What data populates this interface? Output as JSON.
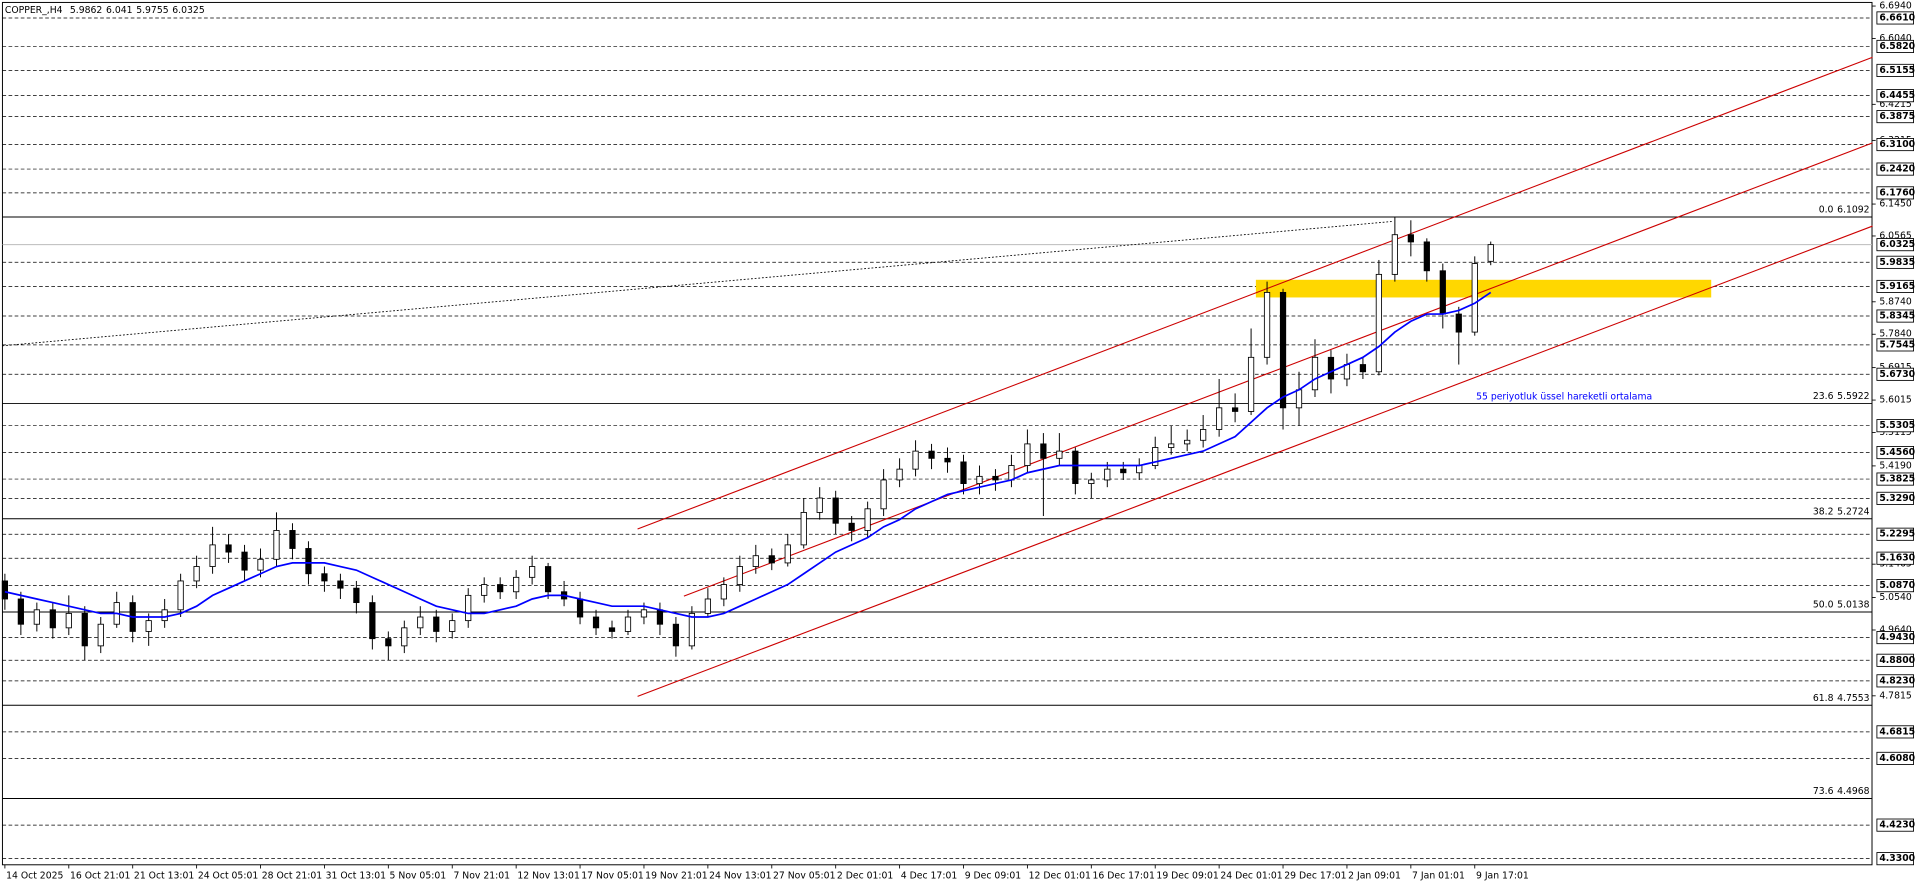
{
  "chart_data": {
    "type": "candlestick",
    "title": "COPPER_,H4",
    "categories": [
      "14 Oct 2025",
      null,
      null,
      null,
      "16 Oct 21:01",
      null,
      null,
      null,
      "21 Oct 13:01",
      null,
      null,
      null,
      "24 Oct 05:01",
      null,
      null,
      null,
      "28 Oct 21:01",
      null,
      null,
      null,
      "31 Oct 13:01",
      null,
      null,
      null,
      "5 Nov 05:01",
      null,
      null,
      null,
      "7 Nov 21:01",
      null,
      null,
      null,
      "12 Nov 13:01",
      null,
      null,
      null,
      "17 Nov 05:01",
      null,
      null,
      null,
      "19 Nov 21:01",
      null,
      null,
      null,
      "24 Nov 13:01",
      null,
      null,
      null,
      "27 Nov 05:01",
      null,
      null,
      null,
      "2 Dec 01:01",
      null,
      null,
      null,
      "4 Dec 17:01",
      null,
      null,
      null,
      "9 Dec 09:01",
      null,
      null,
      null,
      "12 Dec 01:01",
      null,
      null,
      null,
      "16 Dec 17:01",
      null,
      null,
      null,
      "19 Dec 09:01",
      null,
      null,
      null,
      "24 Dec 01:01",
      null,
      null,
      null,
      "29 Dec 17:01",
      null,
      null,
      null,
      "2 Jan 09:01",
      null,
      null,
      null,
      "7 Jan 01:01",
      null,
      null,
      null,
      "9 Jan 17:01",
      null
    ],
    "open": [
      5.1,
      5.05,
      4.98,
      5.02,
      4.97,
      5.01,
      4.92,
      4.98,
      5.04,
      4.96,
      4.99,
      5.02,
      5.1,
      5.14,
      5.2,
      5.18,
      5.13,
      5.16,
      5.24,
      5.19,
      5.12,
      5.1,
      5.08,
      5.04,
      4.94,
      4.92,
      4.97,
      5.0,
      4.96,
      4.99,
      5.06,
      5.09,
      5.07,
      5.11,
      5.14,
      5.07,
      5.05,
      5.0,
      4.97,
      4.96,
      5.0,
      5.02,
      4.98,
      4.92,
      5.01,
      5.05,
      5.09,
      5.14,
      5.17,
      5.15,
      5.2,
      5.29,
      5.33,
      5.26,
      5.24,
      5.3,
      5.38,
      5.41,
      5.46,
      5.44,
      5.43,
      5.37,
      5.39,
      5.38,
      5.42,
      5.48,
      5.44,
      5.46,
      5.37,
      5.38,
      5.41,
      5.4,
      5.42,
      5.47,
      5.48,
      5.49,
      5.52,
      5.58,
      5.57,
      5.72,
      5.9,
      5.58,
      5.63,
      5.72,
      5.66,
      5.7,
      5.68,
      5.95,
      6.06,
      6.04,
      5.96,
      5.84,
      5.79,
      5.9862
    ],
    "high": [
      5.12,
      5.07,
      5.04,
      5.04,
      5.06,
      5.03,
      5.0,
      5.07,
      5.06,
      5.01,
      5.05,
      5.12,
      5.17,
      5.25,
      5.23,
      5.2,
      5.19,
      5.29,
      5.26,
      5.21,
      5.14,
      5.12,
      5.1,
      5.06,
      4.96,
      4.99,
      5.03,
      5.02,
      5.01,
      5.08,
      5.11,
      5.11,
      5.13,
      5.17,
      5.15,
      5.1,
      5.07,
      5.02,
      4.99,
      5.02,
      5.04,
      5.04,
      5.0,
      5.03,
      5.08,
      5.11,
      5.17,
      5.2,
      5.19,
      5.23,
      5.33,
      5.36,
      5.35,
      5.28,
      5.32,
      5.41,
      5.44,
      5.49,
      5.48,
      5.47,
      5.45,
      5.42,
      5.41,
      5.45,
      5.52,
      5.51,
      5.51,
      5.47,
      5.4,
      5.43,
      5.43,
      5.44,
      5.5,
      5.53,
      5.52,
      5.56,
      5.66,
      5.62,
      5.8,
      5.93,
      5.91,
      5.68,
      5.77,
      5.74,
      5.73,
      5.72,
      5.99,
      6.11,
      6.1,
      6.05,
      5.98,
      5.86,
      6.0,
      6.041
    ],
    "low": [
      5.02,
      4.95,
      4.96,
      4.94,
      4.95,
      4.88,
      4.9,
      4.97,
      4.93,
      4.92,
      4.97,
      5.0,
      5.08,
      5.12,
      5.15,
      5.1,
      5.11,
      5.14,
      5.16,
      5.09,
      5.07,
      5.05,
      5.01,
      4.91,
      4.88,
      4.9,
      4.95,
      4.93,
      4.94,
      4.97,
      5.04,
      5.05,
      5.05,
      5.09,
      5.05,
      5.03,
      4.98,
      4.95,
      4.94,
      4.95,
      4.98,
      4.95,
      4.89,
      4.91,
      5.0,
      5.03,
      5.07,
      5.12,
      5.13,
      5.14,
      5.19,
      5.27,
      5.23,
      5.21,
      5.22,
      5.28,
      5.36,
      5.39,
      5.41,
      5.4,
      5.34,
      5.34,
      5.35,
      5.36,
      5.4,
      5.28,
      5.42,
      5.34,
      5.33,
      5.36,
      5.38,
      5.38,
      5.41,
      5.45,
      5.46,
      5.47,
      5.5,
      5.54,
      5.56,
      5.7,
      5.52,
      5.53,
      5.61,
      5.62,
      5.64,
      5.66,
      5.67,
      5.93,
      6.0,
      5.93,
      5.8,
      5.7,
      5.78,
      5.9755
    ],
    "close": [
      5.05,
      4.98,
      5.02,
      4.97,
      5.01,
      4.92,
      4.98,
      5.04,
      4.96,
      4.99,
      5.02,
      5.1,
      5.14,
      5.2,
      5.18,
      5.13,
      5.16,
      5.24,
      5.19,
      5.12,
      5.1,
      5.08,
      5.04,
      4.94,
      4.92,
      4.97,
      5.0,
      4.96,
      4.99,
      5.06,
      5.09,
      5.07,
      5.11,
      5.14,
      5.07,
      5.05,
      5.0,
      4.97,
      4.96,
      5.0,
      5.02,
      4.98,
      4.92,
      5.01,
      5.05,
      5.09,
      5.14,
      5.17,
      5.15,
      5.2,
      5.29,
      5.33,
      5.26,
      5.24,
      5.3,
      5.38,
      5.41,
      5.46,
      5.44,
      5.43,
      5.37,
      5.39,
      5.38,
      5.42,
      5.48,
      5.44,
      5.46,
      5.37,
      5.38,
      5.41,
      5.4,
      5.42,
      5.47,
      5.48,
      5.49,
      5.52,
      5.58,
      5.57,
      5.72,
      5.9,
      5.58,
      5.63,
      5.72,
      5.66,
      5.7,
      5.68,
      5.95,
      6.06,
      6.04,
      5.96,
      5.84,
      5.79,
      5.98,
      6.0325
    ],
    "series": [
      {
        "name": "55 periyotluk üssel hareketli ortalama",
        "color": "#0000ff",
        "values": [
          5.07,
          5.06,
          5.05,
          5.04,
          5.03,
          5.02,
          5.01,
          5.01,
          5.0,
          5.0,
          5.0,
          5.01,
          5.03,
          5.06,
          5.08,
          5.1,
          5.12,
          5.14,
          5.15,
          5.15,
          5.15,
          5.14,
          5.13,
          5.11,
          5.09,
          5.07,
          5.05,
          5.03,
          5.02,
          5.01,
          5.01,
          5.02,
          5.03,
          5.05,
          5.06,
          5.06,
          5.05,
          5.04,
          5.03,
          5.03,
          5.03,
          5.02,
          5.01,
          5.0,
          5.0,
          5.01,
          5.03,
          5.05,
          5.07,
          5.09,
          5.12,
          5.15,
          5.18,
          5.2,
          5.22,
          5.25,
          5.27,
          5.3,
          5.32,
          5.34,
          5.35,
          5.36,
          5.37,
          5.38,
          5.4,
          5.41,
          5.42,
          5.42,
          5.42,
          5.42,
          5.42,
          5.42,
          5.43,
          5.44,
          5.45,
          5.46,
          5.48,
          5.5,
          5.54,
          5.58,
          5.61,
          5.63,
          5.66,
          5.68,
          5.7,
          5.72,
          5.75,
          5.79,
          5.82,
          5.84,
          5.84,
          5.85,
          5.87,
          5.9
        ]
      }
    ],
    "ylim": [
      4.313,
      6.704
    ],
    "yticks": [
      {
        "value": 6.694,
        "label": "6.6940"
      },
      {
        "value": 6.604,
        "label": "6.6040"
      },
      6.4215,
      6.3215,
      {
        "value": 6.145,
        "label": "6.1450"
      },
      6.0565,
      {
        "value": 5.874,
        "label": "5.8740"
      },
      {
        "value": 5.784,
        "label": "5.7840"
      },
      5.6915,
      5.6015,
      5.5115,
      {
        "value": 5.419,
        "label": "5.4190"
      },
      5.1465,
      {
        "value": 5.054,
        "label": "5.0540"
      },
      {
        "value": 4.964,
        "label": "4.9640"
      },
      4.7815
    ],
    "levels": [
      {
        "value": 6.661,
        "label": "6.6610"
      },
      {
        "value": 6.582,
        "label": "6.5820"
      },
      6.5155,
      6.4455,
      6.3875,
      {
        "value": 6.31,
        "label": "6.3100"
      },
      {
        "value": 6.242,
        "label": "6.2420"
      },
      {
        "value": 6.176,
        "label": "6.1760"
      },
      5.9835,
      5.9165,
      5.8345,
      5.7545,
      {
        "value": 5.673,
        "label": "5.6730"
      },
      5.5305,
      {
        "value": 5.456,
        "label": "5.4560"
      },
      5.3825,
      {
        "value": 5.329,
        "label": "5.3290"
      },
      5.2295,
      {
        "value": 5.163,
        "label": "5.1630"
      },
      {
        "value": 5.087,
        "label": "5.0870"
      },
      {
        "value": 4.943,
        "label": "4.9430"
      },
      {
        "value": 4.88,
        "label": "4.8800"
      },
      {
        "value": 4.823,
        "label": "4.8230"
      },
      4.6815,
      {
        "value": 4.608,
        "label": "4.6080"
      },
      {
        "value": 4.423,
        "label": "4.4230"
      },
      {
        "value": 4.33,
        "label": "4.3300"
      }
    ],
    "bid": 6.0325,
    "fib": [
      {
        "ratio": "0.0",
        "value": 6.1092
      },
      {
        "ratio": "23.6",
        "value": 5.5922
      },
      {
        "ratio": "38.2",
        "value": 5.2724
      },
      {
        "ratio": "50.0",
        "value": 5.0138
      },
      {
        "ratio": "61.8",
        "value": 4.7553
      },
      {
        "ratio": "73.6",
        "value": 4.4968
      }
    ],
    "fib_anchor": {
      "x": [
        -0.15,
        86.9
      ],
      "y": [
        5.752,
        6.097
      ]
    },
    "trendlines": [
      {
        "x": [
          39.6,
          116.9
        ],
        "y": [
          5.244,
          6.552
        ]
      },
      {
        "x": [
          42.5,
          116.9
        ],
        "y": [
          5.058,
          6.3145
        ]
      },
      {
        "x": [
          39.6,
          116.9
        ],
        "y": [
          4.78,
          6.084
        ]
      }
    ],
    "trend_color": "#cc0000",
    "zone": {
      "x": [
        78.3,
        106.8
      ],
      "y": [
        5.935,
        5.886
      ],
      "color": "#ffd700"
    }
  }
}
